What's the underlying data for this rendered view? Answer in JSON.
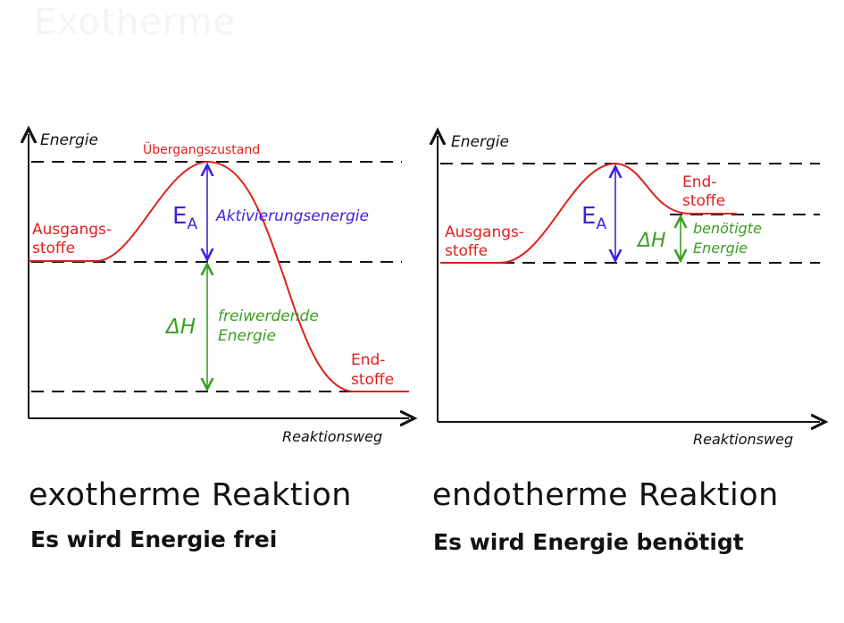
{
  "ghost_title": "Exotherme",
  "left": {
    "y_axis": "Energie",
    "x_axis": "Reaktionsweg",
    "transition_state": "Übergangszustand",
    "reactants": [
      "Ausgangs-",
      "stoffe"
    ],
    "products": [
      "End-",
      "stoffe"
    ],
    "ea_symbol": "E",
    "ea_sub": "A",
    "ea_label": "Aktivierungsenergie",
    "dh_symbol": "ΔH",
    "dh_label": [
      "freiwerdende",
      "Energie"
    ],
    "caption_title": "exotherme Reaktion",
    "caption_sub": "Es wird Energie frei"
  },
  "right": {
    "y_axis": "Energie",
    "x_axis": "Reaktionsweg",
    "reactants": [
      "Ausgangs-",
      "stoffe"
    ],
    "products": [
      "End-",
      "stoffe"
    ],
    "ea_symbol": "E",
    "ea_sub": "A",
    "dh_symbol": "ΔH",
    "dh_label": [
      "benötigte",
      "Energie"
    ],
    "caption_title": "endotherme Reaktion",
    "caption_sub": "Es wird Energie benötigt"
  },
  "colors": {
    "curve": "#e0201c",
    "activation": "#3b22e0",
    "enthalpy": "#3a9e22",
    "axes": "#111111"
  }
}
